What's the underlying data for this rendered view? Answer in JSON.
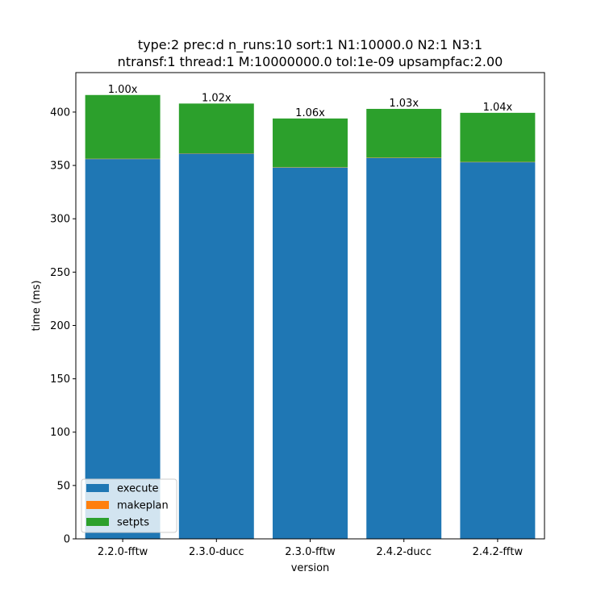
{
  "chart_data": {
    "type": "bar",
    "stacked": true,
    "title_lines": [
      "type:2 prec:d n_runs:10 sort:1 N1:10000.0 N2:1 N3:1",
      "ntransf:1 thread:1 M:10000000.0 tol:1e-09 upsampfac:2.00"
    ],
    "xlabel": "version",
    "ylabel": "time (ms)",
    "categories": [
      "2.2.0-fftw",
      "2.3.0-ducc",
      "2.3.0-fftw",
      "2.4.2-ducc",
      "2.4.2-fftw"
    ],
    "series": [
      {
        "name": "execute",
        "color": "#1f77b4",
        "values": [
          356,
          361,
          348,
          357,
          353
        ]
      },
      {
        "name": "makeplan",
        "color": "#ff7f0e",
        "values": [
          0.3,
          0.3,
          0.3,
          0.3,
          0.3
        ]
      },
      {
        "name": "setpts",
        "color": "#2ca02c",
        "values": [
          59.7,
          46.7,
          45.7,
          45.7,
          46.0
        ]
      }
    ],
    "bar_labels": [
      "1.00x",
      "1.02x",
      "1.06x",
      "1.03x",
      "1.04x"
    ],
    "ylim": [
      0,
      437
    ],
    "yticks": [
      0,
      50,
      100,
      150,
      200,
      250,
      300,
      350,
      400
    ],
    "grid": false,
    "legend_position": "lower-left"
  }
}
